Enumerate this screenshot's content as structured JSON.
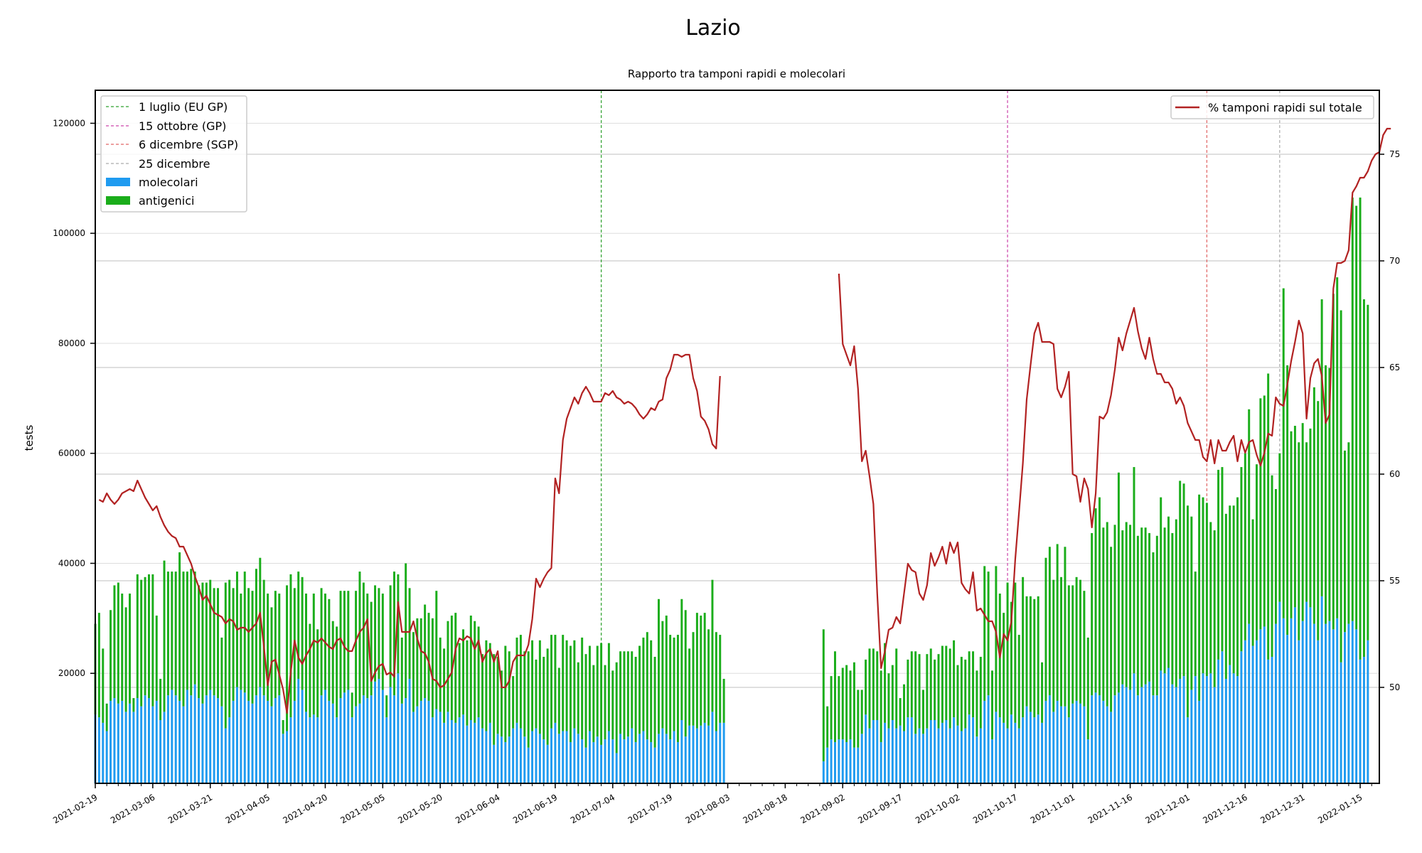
{
  "chart_data": {
    "type": "bar",
    "title": "Lazio",
    "subtitle": "Rapporto tra tamponi rapidi e molecolari",
    "ylabel": "tests",
    "ylim_left": [
      0,
      126000
    ],
    "ylim_right": [
      45.5,
      78.0
    ],
    "left_ticks": [
      20000,
      40000,
      60000,
      80000,
      100000,
      120000
    ],
    "right_ticks": [
      50,
      55,
      60,
      65,
      70,
      75
    ],
    "grid": true,
    "x_start": "2021-02-19",
    "x_end": "2022-01-20",
    "x_ticks": [
      "2021-02-19",
      "2021-03-06",
      "2021-03-21",
      "2021-04-05",
      "2021-04-20",
      "2021-05-05",
      "2021-05-20",
      "2021-06-04",
      "2021-06-19",
      "2021-07-04",
      "2021-07-19",
      "2021-08-03",
      "2021-08-18",
      "2021-09-02",
      "2021-09-17",
      "2021-10-02",
      "2021-10-17",
      "2021-11-01",
      "2021-11-16",
      "2021-12-01",
      "2021-12-16",
      "2021-12-31",
      "2022-01-15"
    ],
    "vlines": [
      {
        "label": "1 luglio (EU GP)",
        "date": "2021-07-01",
        "color": "#2ca02c"
      },
      {
        "label": "15 ottobre (GP)",
        "date": "2021-10-15",
        "color": "#cc44aa"
      },
      {
        "label": "6 dicembre (SGP)",
        "date": "2021-12-06",
        "color": "#e06666"
      },
      {
        "label": "25 dicembre",
        "date": "2021-12-25",
        "color": "#aaaaaa"
      }
    ],
    "series": [
      {
        "name": "molecolari",
        "color": "#1f9bf0"
      },
      {
        "name": "antigenici",
        "color": "#1aad1a"
      },
      {
        "name": "% tamponi rapidi sul totale",
        "color": "#b22222"
      }
    ],
    "segments": [
      {
        "start": "2021-02-19",
        "molecolari": [
          12500,
          12000,
          11000,
          9500,
          15000,
          15500,
          14500,
          15000,
          13000,
          14500,
          13000,
          15500,
          14000,
          16000,
          15500,
          14000,
          15000,
          11500,
          13000,
          16000,
          17000,
          16000,
          15000,
          14000,
          17000,
          16000,
          18000,
          15500,
          14500,
          16000,
          17000,
          16000,
          15500,
          14000,
          10000,
          12000,
          15000,
          17500,
          17000,
          16500,
          15000,
          14500,
          16000,
          17500,
          16000,
          15000,
          14000,
          15500,
          16000,
          9000,
          9500,
          12000,
          15000,
          19000,
          17000,
          13000,
          12000,
          12500,
          12000,
          16000,
          17000,
          15000,
          14500,
          12000,
          15500,
          16500,
          17000,
          12000,
          14000,
          14500,
          16000,
          15500,
          16000,
          18500,
          19000,
          17000,
          12000,
          17500,
          16000,
          20000,
          14500,
          15500,
          19000,
          13000,
          14000,
          15000,
          15500,
          15000,
          12000,
          13500,
          13000,
          11000,
          13000,
          11500,
          11000,
          12000,
          12500,
          10500,
          11500,
          11000,
          12000,
          10000,
          9500,
          11000,
          7000,
          9000,
          8500,
          7500,
          8500,
          10000,
          11000,
          10000,
          8500,
          6500,
          9500,
          10000,
          9000,
          8000,
          7000,
          10000,
          11000,
          9000,
          9500,
          9500,
          7500,
          10000,
          9000,
          8000,
          6500,
          9500,
          7500,
          8500,
          7000,
          8000,
          9500,
          8000,
          5500,
          9000,
          8000,
          8500,
          10000,
          7500,
          9000,
          9500,
          8000,
          7500,
          6500,
          9000,
          10000,
          9000,
          8000,
          9500,
          7500,
          11500,
          8500,
          10500,
          10500,
          10000,
          10500,
          11000,
          10500,
          13000,
          9500,
          11000,
          11000
        ],
        "antigenici": [
          16500,
          19000,
          13500,
          5000,
          16500,
          20500,
          22000,
          19500,
          19000,
          20000,
          2500,
          22500,
          23000,
          21500,
          22500,
          24000,
          15500,
          7500,
          27500,
          22500,
          21500,
          22500,
          27000,
          24500,
          21500,
          23000,
          20500,
          20500,
          22000,
          20500,
          20000,
          19500,
          20000,
          12500,
          26500,
          25000,
          20500,
          21000,
          17500,
          22000,
          20500,
          20500,
          23000,
          23500,
          21000,
          19500,
          18000,
          19500,
          18500,
          2500,
          26500,
          26000,
          20500,
          19500,
          20500,
          21500,
          17000,
          22000,
          16000,
          19500,
          17500,
          18500,
          15000,
          16500,
          19500,
          18500,
          18000,
          4500,
          21000,
          24000,
          20500,
          19000,
          17000,
          17500,
          16500,
          17500,
          4000,
          18500,
          22500,
          18000,
          12000,
          24500,
          16500,
          14500,
          16000,
          15000,
          17000,
          16000,
          18000,
          21500,
          13500,
          13500,
          16500,
          19000,
          20000,
          13500,
          15500,
          15500,
          19000,
          18500,
          16500,
          13500,
          16500,
          14500,
          16500,
          14000,
          12000,
          17500,
          15500,
          9500,
          15500,
          17000,
          15500,
          17500,
          16500,
          12500,
          17000,
          15000,
          17500,
          17000,
          16000,
          12000,
          17500,
          16500,
          17500,
          16000,
          13000,
          18500,
          17000,
          15500,
          14000,
          16500,
          18500,
          13500,
          16000,
          12500,
          16500,
          15000,
          16000,
          15500,
          14000,
          15500,
          16000,
          17000,
          19500,
          18500,
          16500,
          24500,
          19500,
          21500,
          19000,
          17000,
          19500,
          22000,
          23000,
          14000,
          17000,
          21000,
          20000,
          20000,
          17500,
          24000,
          18000,
          16000,
          8000
        ]
      },
      {
        "start": "2021-08-28",
        "molecolari": [
          4000,
          6500,
          8000,
          7500,
          8000,
          8000,
          7500,
          8000,
          6500,
          6500,
          9000,
          12500,
          10000,
          11500,
          11500,
          7500,
          11000,
          10000,
          11500,
          10000,
          10500,
          9500,
          12000,
          12000,
          9000,
          10000,
          9000,
          10000,
          11500,
          11500,
          10000,
          11000,
          11500,
          10000,
          12000,
          10500,
          9500,
          10000,
          12500,
          12000,
          8500,
          10000,
          15000,
          16000,
          8000,
          13000,
          12000,
          11000,
          10000,
          12500,
          11000,
          10000,
          12000,
          14000,
          13000,
          12000,
          12500,
          11000,
          15000,
          16000,
          13000,
          15000,
          14000,
          14000,
          12000,
          14500,
          15000,
          14500,
          14000,
          8000,
          16000,
          16500,
          16000,
          15000,
          14000,
          13000,
          16000,
          16500,
          18000,
          17500,
          17000,
          20000,
          16000,
          17500,
          18000,
          18500,
          16000,
          16000,
          20500,
          20000,
          21000,
          18000,
          17500,
          19000,
          19500,
          12000,
          17000,
          19500,
          15000,
          20000,
          19500,
          20000,
          17500,
          22500,
          24000,
          19000,
          21500,
          20000,
          19500,
          24000,
          26000,
          29000,
          25000,
          26000,
          28000,
          28500,
          22500,
          23000,
          29000,
          33000,
          30000,
          27000,
          30000,
          32000,
          26000,
          29500,
          33000,
          32000,
          29000,
          26000,
          34000,
          29000,
          29500,
          28000,
          30000,
          22000,
          27500,
          29000,
          29500,
          28000,
          22500,
          23000,
          26000
        ],
        "antigenici": [
          24000,
          7500,
          11500,
          16500,
          11500,
          13000,
          14000,
          12500,
          15500,
          10500,
          8000,
          10000,
          14500,
          13000,
          12500,
          13000,
          14500,
          10000,
          10000,
          14500,
          5000,
          8500,
          10500,
          12000,
          15000,
          13500,
          8000,
          13500,
          13000,
          11000,
          13500,
          14000,
          13500,
          14500,
          14000,
          11000,
          13500,
          12500,
          11500,
          12000,
          12000,
          13000,
          24500,
          22500,
          12500,
          26500,
          22500,
          20000,
          26500,
          20500,
          25500,
          17000,
          25500,
          20000,
          21000,
          21500,
          21500,
          11000,
          26000,
          27000,
          24000,
          28500,
          23500,
          29000,
          24000,
          21500,
          22500,
          22500,
          21000,
          18500,
          29500,
          33500,
          36000,
          31500,
          33500,
          30000,
          31000,
          40000,
          28000,
          30000,
          30000,
          37500,
          29000,
          29000,
          28500,
          27000,
          26000,
          29000,
          31500,
          26500,
          27500,
          27500,
          30500,
          36000,
          35000,
          38500,
          31500,
          19000,
          37500,
          32000,
          31500,
          27500,
          28500,
          34500,
          33500,
          30000,
          29000,
          30500,
          32500,
          33500,
          34000,
          39000,
          23000,
          32000,
          42000,
          42000,
          52000,
          33000,
          24500,
          27000,
          60000,
          49000,
          34000,
          33000,
          36000,
          36000,
          29000,
          32500,
          43000,
          43500,
          54000,
          47000,
          46000,
          61000,
          62000,
          64000,
          33000,
          33000,
          77000,
          77000,
          84000,
          65000,
          61000,
          59000
        ]
      }
    ],
    "pct": [
      {
        "start": "2021-02-20",
        "values": [
          58.8,
          58.7,
          59.1,
          58.8,
          58.6,
          58.8,
          59.1,
          59.2,
          59.3,
          59.2,
          59.7,
          59.3,
          58.9,
          58.6,
          58.3,
          58.5,
          58.0,
          57.6,
          57.3,
          57.1,
          57.0,
          56.6,
          56.6,
          56.2,
          55.8,
          55.2,
          54.7,
          54.1,
          54.3,
          53.9,
          53.5,
          53.4,
          53.3,
          53.0,
          53.2,
          53.1,
          52.7,
          52.8,
          52.8,
          52.6,
          52.8,
          53.0,
          53.5,
          51.9,
          50.1,
          51.2,
          51.3,
          50.6,
          49.9,
          48.8,
          50.7,
          52.2,
          51.4,
          51.1,
          51.5,
          51.8,
          52.2,
          52.1,
          52.3,
          52.1,
          51.9,
          51.8,
          52.2,
          52.3,
          51.9,
          51.7,
          51.7,
          52.2,
          52.6,
          52.8,
          53.2,
          50.3,
          50.7,
          51.0,
          51.1,
          50.6,
          50.7,
          50.5,
          54.0,
          52.6,
          52.6,
          52.6,
          53.1,
          52.3,
          51.7,
          51.6,
          51.2,
          50.4,
          50.3,
          50.0,
          50.1,
          50.4,
          50.7,
          51.8,
          52.3,
          52.2,
          52.4,
          52.3,
          51.8,
          52.2,
          51.2,
          51.6,
          51.8,
          51.2,
          51.7,
          50.0,
          50.0,
          50.3,
          51.2,
          51.5,
          51.5,
          51.5,
          52.0,
          53.2,
          55.1,
          54.7,
          55.1,
          55.4,
          55.6,
          59.8,
          59.1,
          61.6,
          62.6,
          63.1,
          63.6,
          63.3,
          63.8,
          64.1,
          63.8,
          63.4,
          63.4,
          63.4,
          63.8,
          63.7,
          63.9,
          63.6,
          63.5,
          63.3,
          63.4,
          63.3,
          63.1,
          62.8,
          62.6,
          62.8,
          63.1,
          63.0,
          63.4,
          63.5,
          64.5,
          64.9,
          65.6,
          65.6,
          65.5,
          65.6,
          65.6,
          64.5,
          63.9,
          62.7,
          62.5,
          62.1,
          61.4,
          61.2,
          64.6
        ]
      },
      {
        "start": "2021-09-01",
        "values": [
          69.4,
          66.1,
          65.6,
          65.1,
          66.0,
          64.0,
          60.6,
          61.1,
          59.9,
          58.6,
          54.4,
          50.9,
          51.7,
          52.7,
          52.8,
          53.3,
          53.0,
          54.4,
          55.8,
          55.5,
          55.4,
          54.4,
          54.1,
          54.8,
          56.3,
          55.7,
          56.1,
          56.6,
          55.8,
          56.8,
          56.3,
          56.8,
          54.9,
          54.6,
          54.4,
          55.4,
          53.6,
          53.7,
          53.4,
          53.1,
          53.1,
          52.6,
          51.4,
          52.5,
          52.2,
          53.1,
          56.0,
          58.2,
          60.5,
          63.5,
          65.1,
          66.6,
          67.1,
          66.2,
          66.2,
          66.2,
          66.1,
          64.0,
          63.6,
          64.1,
          64.8,
          60.0,
          59.9,
          58.7,
          59.8,
          59.3,
          57.5,
          59.1,
          62.7,
          62.6,
          62.9,
          63.7,
          64.9,
          66.4,
          65.8,
          66.6,
          67.2,
          67.8,
          66.7,
          65.9,
          65.4,
          66.4,
          65.4,
          64.7,
          64.7,
          64.3,
          64.3,
          64.0,
          63.3,
          63.6,
          63.2,
          62.4,
          62.0,
          61.6,
          61.6,
          60.8,
          60.6,
          61.6,
          60.5,
          61.6,
          61.1,
          61.1,
          61.5,
          61.8,
          60.6,
          61.6,
          61.0,
          61.5,
          61.6,
          60.9,
          60.4,
          61.0,
          61.9,
          61.8,
          63.6,
          63.3,
          63.2,
          64.2,
          65.3,
          66.2,
          67.2,
          66.6,
          62.6,
          64.5,
          65.2,
          65.4,
          64.6,
          62.4,
          62.8,
          68.7,
          69.9,
          69.9,
          70.0,
          70.5,
          73.2,
          73.5,
          73.9,
          73.9,
          74.2,
          74.7,
          75.0,
          75.1,
          75.9,
          76.2,
          76.2
        ]
      }
    ]
  },
  "legend_left": {
    "items": [
      "1 luglio (EU GP)",
      "15 ottobre (GP)",
      "6 dicembre (SGP)",
      "25 dicembre",
      "molecolari",
      "antigenici"
    ]
  },
  "legend_right": {
    "items": [
      "% tamponi rapidi sul totale"
    ]
  }
}
